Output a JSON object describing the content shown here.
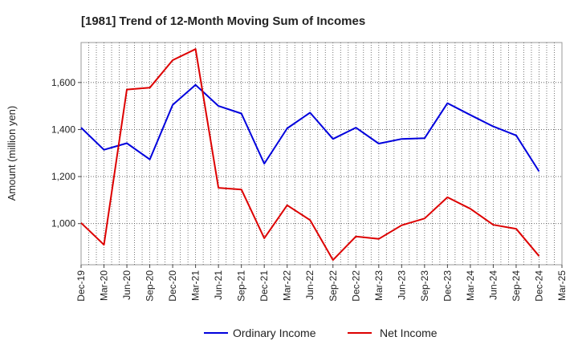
{
  "chart_data": {
    "type": "line",
    "title": "[1981]  Trend of 12-Month Moving Sum of Incomes",
    "xlabel": "",
    "ylabel": "Amount (million yen)",
    "categories": [
      "Dec-19",
      "Mar-20",
      "Jun-20",
      "Sep-20",
      "Dec-20",
      "Mar-21",
      "Jun-21",
      "Sep-21",
      "Dec-21",
      "Mar-22",
      "Jun-22",
      "Sep-22",
      "Dec-22",
      "Mar-23",
      "Jun-23",
      "Sep-23",
      "Dec-23",
      "Mar-24",
      "Jun-24",
      "Sep-24",
      "Dec-24",
      "Mar-25"
    ],
    "ylim": [
      825,
      1770
    ],
    "yticks": [
      1000,
      1200,
      1400,
      1600
    ],
    "ytick_labels": [
      "1,000",
      "1,200",
      "1,400",
      "1,600"
    ],
    "grid": true,
    "legend_position": "bottom",
    "series": [
      {
        "name": "Ordinary Income",
        "color": "#0000dd",
        "values": [
          1408,
          1314,
          1342,
          1273,
          1505,
          1590,
          1500,
          1468,
          1255,
          1405,
          1472,
          1360,
          1408,
          1340,
          1360,
          1363,
          1512,
          1462,
          1413,
          1375,
          1222,
          null
        ]
      },
      {
        "name": "Net Income",
        "color": "#dd0000",
        "values": [
          1003,
          910,
          1570,
          1578,
          1695,
          1742,
          1152,
          1145,
          938,
          1078,
          1015,
          845,
          945,
          935,
          993,
          1022,
          1112,
          1063,
          995,
          978,
          862,
          null
        ]
      }
    ]
  }
}
